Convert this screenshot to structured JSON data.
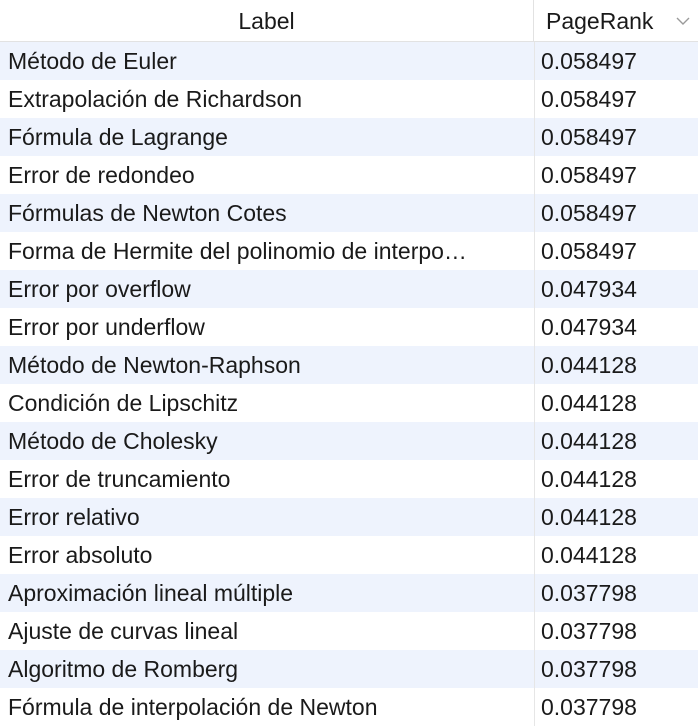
{
  "table": {
    "columns": [
      "Label",
      "PageRank"
    ],
    "sort_icon": "chevron-down-icon",
    "rows": [
      {
        "label": "Método de Euler",
        "pagerank": "0.058497"
      },
      {
        "label": "Extrapolación de Richardson",
        "pagerank": "0.058497"
      },
      {
        "label": "Fórmula de Lagrange",
        "pagerank": "0.058497"
      },
      {
        "label": "Error de redondeo",
        "pagerank": "0.058497"
      },
      {
        "label": "Fórmulas de Newton Cotes",
        "pagerank": "0.058497"
      },
      {
        "label": "Forma de Hermite del polinomio de interpo…",
        "pagerank": "0.058497"
      },
      {
        "label": "Error por overflow",
        "pagerank": "0.047934"
      },
      {
        "label": "Error por underflow",
        "pagerank": "0.047934"
      },
      {
        "label": "Método de Newton-Raphson",
        "pagerank": "0.044128"
      },
      {
        "label": "Condición de Lipschitz",
        "pagerank": "0.044128"
      },
      {
        "label": "Método de Cholesky",
        "pagerank": "0.044128"
      },
      {
        "label": "Error de truncamiento",
        "pagerank": "0.044128"
      },
      {
        "label": "Error relativo",
        "pagerank": "0.044128"
      },
      {
        "label": "Error absoluto",
        "pagerank": "0.044128"
      },
      {
        "label": "Aproximación lineal múltiple",
        "pagerank": "0.037798"
      },
      {
        "label": "Ajuste de curvas lineal",
        "pagerank": "0.037798"
      },
      {
        "label": "Algoritmo de Romberg",
        "pagerank": "0.037798"
      },
      {
        "label": "Fórmula de interpolación de Newton",
        "pagerank": "0.037798"
      }
    ]
  }
}
